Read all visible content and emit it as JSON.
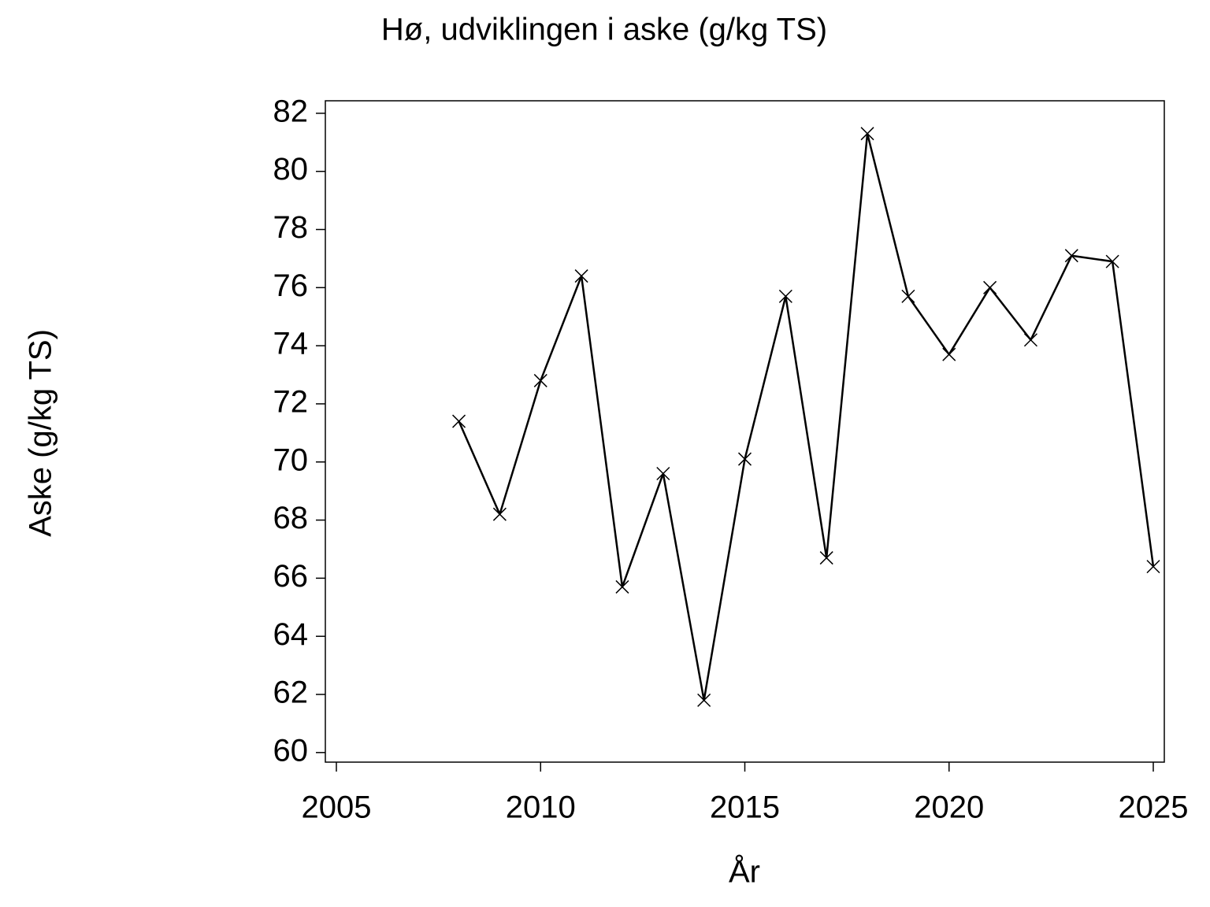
{
  "chart_data": {
    "type": "line",
    "title": "Hø, udviklingen i aske (g/kg TS)",
    "x_label": "År",
    "y_label": "Aske (g/kg TS)",
    "x": [
      2008,
      2009,
      2010,
      2011,
      2012,
      2013,
      2014,
      2015,
      2016,
      2017,
      2018,
      2019,
      2020,
      2021,
      2022,
      2023,
      2024,
      2025
    ],
    "values": [
      71.4,
      68.2,
      72.8,
      76.4,
      65.7,
      69.6,
      61.8,
      70.1,
      75.7,
      66.7,
      81.3,
      75.7,
      73.7,
      76.0,
      74.2,
      77.1,
      76.9,
      66.4
    ],
    "color": "#000000",
    "xlim": [
      2004.73,
      2025.27
    ],
    "xticks": [
      2005,
      2010,
      2015,
      2020,
      2025
    ],
    "ylim": [
      59.67,
      82.43
    ],
    "yticks": [
      60,
      62,
      64,
      66,
      68,
      70,
      72,
      74,
      76,
      78,
      80,
      82
    ]
  }
}
